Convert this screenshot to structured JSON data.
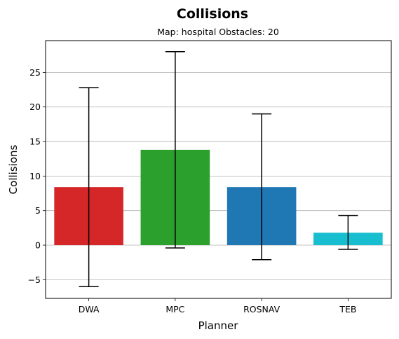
{
  "chart_data": {
    "type": "bar",
    "title": "Collisions",
    "subtitle": "Map: hospital Obstacles: 20",
    "xlabel": "Planner",
    "ylabel": "Collisions",
    "categories": [
      "DWA",
      "MPC",
      "ROSNAV",
      "TEB"
    ],
    "values": [
      8.4,
      13.8,
      8.4,
      1.8
    ],
    "error_low": [
      -6.0,
      -0.4,
      -2.1,
      -0.6
    ],
    "error_high": [
      22.8,
      28.0,
      19.0,
      4.3
    ],
    "colors": [
      "#d62728",
      "#2ca02c",
      "#1f77b4",
      "#17becf"
    ],
    "ylim": [
      -7.7,
      29.6
    ],
    "yticks": [
      -5,
      0,
      5,
      10,
      15,
      20,
      25
    ],
    "ytick_labels": [
      "−5",
      "0",
      "5",
      "10",
      "15",
      "20",
      "25"
    ],
    "grid": "horizontal"
  }
}
